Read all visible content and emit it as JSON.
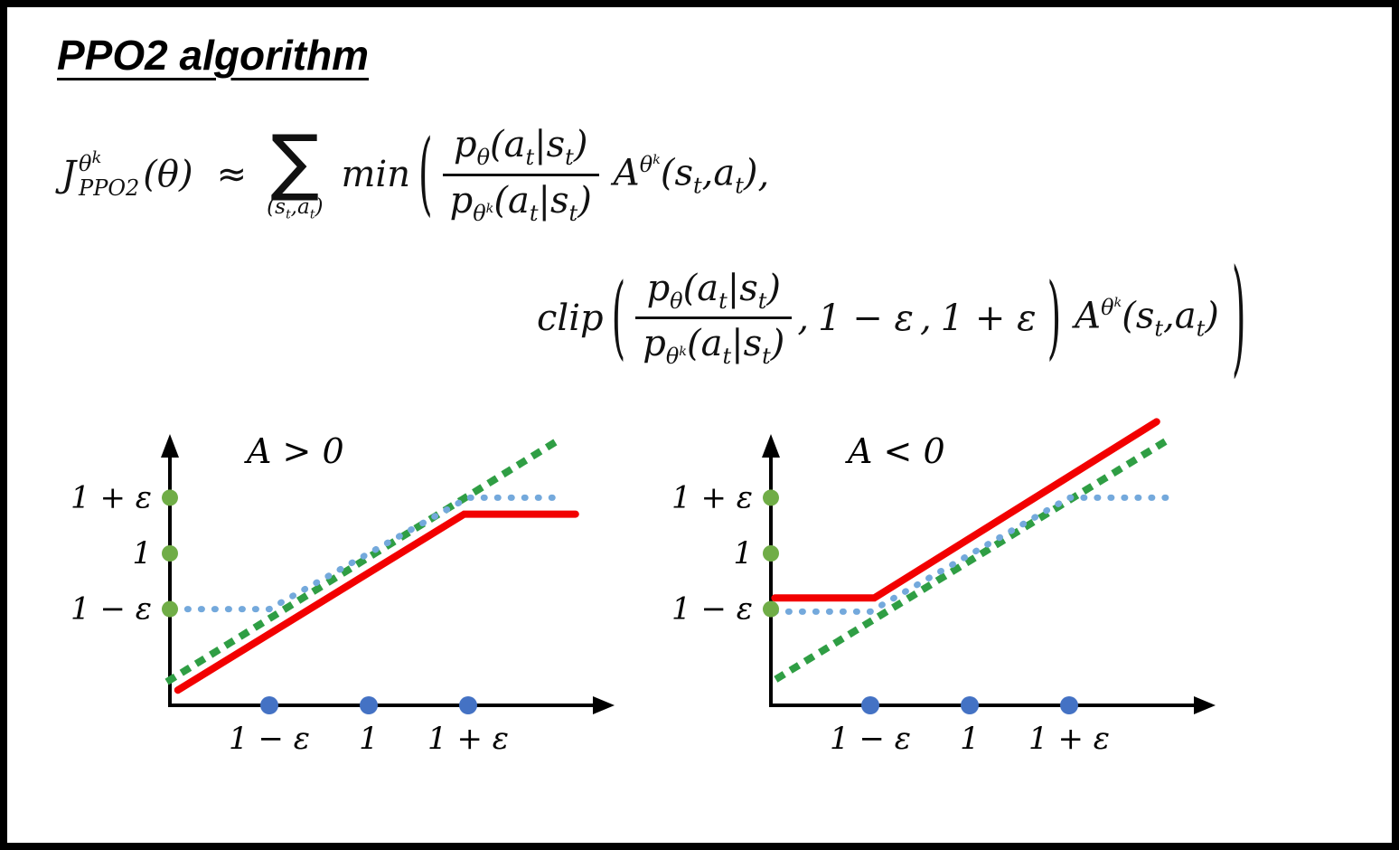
{
  "page": {
    "title": "PPO2 algorithm"
  },
  "tok": {
    "J": "J",
    "theta": "θ",
    "k": "k",
    "PPO2": "PPO2",
    "of_theta": "(θ)",
    "approx": "≈",
    "sum": "∑",
    "lp": "(",
    "rp": ")",
    "comma": ",",
    "s": "s",
    "a": "a",
    "t": "t",
    "p": "p",
    "bar": "|",
    "A": "A",
    "min": "min",
    "clip": "clip",
    "one_minus_eps": "1 − ε",
    "one_plus_eps": "1 + ε"
  },
  "chart_data": [
    {
      "type": "line",
      "title": "A > 0",
      "x_tick_labels": [
        "1 − ε",
        "1",
        "1 + ε"
      ],
      "y_tick_labels": [
        "1 + ε",
        "1",
        "1 − ε"
      ],
      "x_tick_pos": [
        0.25,
        0.5,
        0.75
      ],
      "y_tick_pos": [
        0.82,
        0.6,
        0.38
      ],
      "x_dot_color": "#4472c4",
      "y_dot_color": "#70ad47",
      "axis_note": "x axis = ratio p_theta/p_theta_k; ticks 1-eps, 1, 1+eps; dotted green = unclipped ratio (identity), dotted blue = clipped ratio, solid red = PPO2 objective (min), flat above 1+eps",
      "series": [
        {
          "name": "ratio-identity-line",
          "color": "#2f9e44",
          "dash": "dotted-square",
          "width": 8,
          "points": [
            [
              0.0,
              0.1
            ],
            [
              0.98,
              1.05
            ]
          ]
        },
        {
          "name": "clipped-ratio-line",
          "color": "#74a9dc",
          "dash": "dotted-round",
          "width": 7,
          "points": [
            [
              0.01,
              0.38
            ],
            [
              0.25,
              0.38
            ],
            [
              0.75,
              0.82
            ],
            [
              0.99,
              0.82
            ]
          ]
        },
        {
          "name": "objective-line",
          "color": "#f20000",
          "dash": "solid",
          "width": 8,
          "points": [
            [
              0.02,
              0.06
            ],
            [
              0.74,
              0.755
            ],
            [
              1.02,
              0.755
            ]
          ]
        }
      ]
    },
    {
      "type": "line",
      "title": "A < 0",
      "x_tick_labels": [
        "1 − ε",
        "1",
        "1 + ε"
      ],
      "y_tick_labels": [
        "1 + ε",
        "1",
        "1 − ε"
      ],
      "x_tick_pos": [
        0.25,
        0.5,
        0.75
      ],
      "y_tick_pos": [
        0.82,
        0.6,
        0.38
      ],
      "x_dot_color": "#4472c4",
      "y_dot_color": "#70ad47",
      "axis_note": "x axis = ratio p_theta/p_theta_k; solid red = PPO2 objective (flat at 1-eps then rising), dotted green = identity, dotted blue = clipped ratio",
      "series": [
        {
          "name": "ratio-identity-line",
          "color": "#2f9e44",
          "dash": "dotted-square",
          "width": 8,
          "points": [
            [
              0.02,
              0.11
            ],
            [
              1.0,
              1.05
            ]
          ]
        },
        {
          "name": "clipped-ratio-line",
          "color": "#74a9dc",
          "dash": "dotted-round",
          "width": 7,
          "points": [
            [
              0.01,
              0.37
            ],
            [
              0.25,
              0.37
            ],
            [
              0.75,
              0.82
            ],
            [
              1.0,
              0.82
            ]
          ]
        },
        {
          "name": "objective-line",
          "color": "#f20000",
          "dash": "solid",
          "width": 8,
          "points": [
            [
              0.01,
              0.424
            ],
            [
              0.26,
              0.424
            ],
            [
              0.97,
              1.12
            ]
          ]
        }
      ]
    }
  ]
}
